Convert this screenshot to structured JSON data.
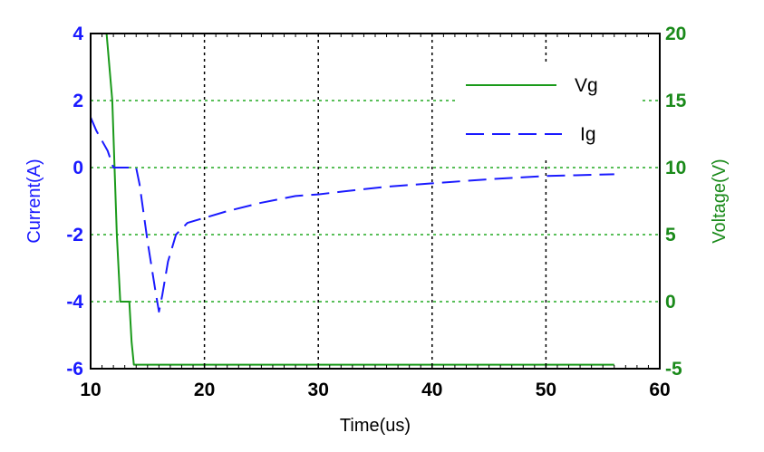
{
  "chart_data": {
    "type": "line",
    "title": "",
    "xlabel": "Time(us)",
    "ylabel_left": "Current(A)",
    "ylabel_right": "Voltage(V)",
    "xlim": [
      10,
      60
    ],
    "ylim_left": [
      -6,
      4
    ],
    "ylim_right": [
      -5,
      20
    ],
    "x_ticks": [
      "10",
      "20",
      "30",
      "40",
      "50",
      "60"
    ],
    "y_left_ticks": [
      "-6",
      "-4",
      "-2",
      "0",
      "2",
      "4"
    ],
    "y_right_ticks": [
      "-5",
      "0",
      "5",
      "10",
      "15",
      "20"
    ],
    "grid": true,
    "legend_position": "top-right",
    "colors": {
      "frame": "#000000",
      "grid": "#000000",
      "grid_green": "#22aa22",
      "left_axis": "#1a1aff",
      "right_axis": "#1a8a1a"
    },
    "series": [
      {
        "name": "Vg",
        "axis": "right",
        "color": "#1a9a1a",
        "dash": "solid",
        "x": [
          11.4,
          11.9,
          12.1,
          12.3,
          12.6,
          13.0,
          13.4,
          13.6,
          13.8,
          14.3,
          20,
          30,
          40,
          50,
          56
        ],
        "y": [
          20,
          15,
          10,
          5,
          0,
          0,
          0,
          -3,
          -4.7,
          -4.7,
          -4.7,
          -4.7,
          -4.7,
          -4.7,
          -4.7
        ]
      },
      {
        "name": "Ig",
        "axis": "left",
        "color": "#1a1aff",
        "dash": "dashed",
        "x": [
          10,
          10.5,
          11.5,
          12,
          14,
          14.3,
          15,
          15.7,
          16,
          16.3,
          16.8,
          17.5,
          18.5,
          20,
          22,
          25,
          28,
          30,
          33,
          36,
          40,
          45,
          50,
          56
        ],
        "y": [
          1.5,
          1.1,
          0.5,
          0,
          0,
          -0.5,
          -2.2,
          -3.7,
          -4.3,
          -3.8,
          -2.8,
          -2.0,
          -1.65,
          -1.5,
          -1.3,
          -1.05,
          -0.85,
          -0.8,
          -0.68,
          -0.57,
          -0.47,
          -0.35,
          -0.25,
          -0.2
        ]
      }
    ]
  }
}
